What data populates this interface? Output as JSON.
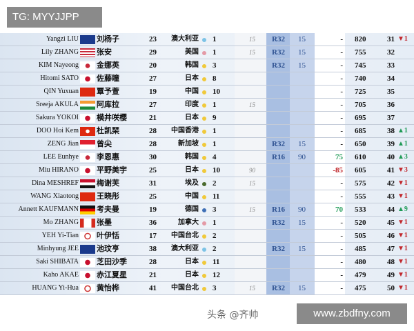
{
  "watermarks": {
    "top_left": "TG: MYYJJPP",
    "bottom_right": "www.zbdfny.com",
    "overlay": "头条 @齐帅"
  },
  "colors": {
    "up": "#1e9a55",
    "down": "#c0262b",
    "region_au": "#7cc3e6",
    "region_na": "#e49aa6",
    "region_asia": "#f0c93a",
    "region_africa": "#4b6b2e",
    "region_eu": "#3f6fb6"
  },
  "rows": [
    {
      "name": "Yangzi LIU",
      "flag": "au",
      "cn": "刘杨子",
      "age": "23",
      "country": "澳大利亚",
      "dot": "#7cc3e6",
      "n": "1",
      "it": "15",
      "round": "R32",
      "rp": "15",
      "diff": "-",
      "pts": "820",
      "rank": "31",
      "chg": "▼1",
      "dir": "down"
    },
    {
      "name": "Lily ZHANG",
      "flag": "us",
      "cn": "张安",
      "age": "29",
      "country": "美国",
      "dot": "#e49aa6",
      "n": "1",
      "it": "15",
      "round": "R32",
      "rp": "15",
      "diff": "-",
      "pts": "755",
      "rank": "32",
      "chg": "",
      "dir": ""
    },
    {
      "name": "KIM Nayeong",
      "flag": "kr",
      "cn": "金娜英",
      "age": "20",
      "country": "韩国",
      "dot": "#f0c93a",
      "n": "3",
      "it": "",
      "round": "R32",
      "rp": "15",
      "diff": "-",
      "pts": "745",
      "rank": "33",
      "chg": "",
      "dir": ""
    },
    {
      "name": "Hitomi SATO",
      "flag": "jp",
      "cn": "佐藤瞳",
      "age": "27",
      "country": "日本",
      "dot": "#f0c93a",
      "n": "8",
      "it": "",
      "round": "",
      "rp": "",
      "diff": "-",
      "pts": "740",
      "rank": "34",
      "chg": "",
      "dir": ""
    },
    {
      "name": "QIN Yuxuan",
      "flag": "cn",
      "cn": "覃予萱",
      "age": "19",
      "country": "中国",
      "dot": "#f0c93a",
      "n": "10",
      "it": "",
      "round": "",
      "rp": "",
      "diff": "-",
      "pts": "725",
      "rank": "35",
      "chg": "",
      "dir": ""
    },
    {
      "name": "Sreeja AKULA",
      "flag": "in",
      "cn": "阿库拉",
      "age": "27",
      "country": "印度",
      "dot": "#f0c93a",
      "n": "1",
      "it": "15",
      "round": "",
      "rp": "",
      "diff": "-",
      "pts": "705",
      "rank": "36",
      "chg": "",
      "dir": ""
    },
    {
      "name": "Sakura YOKOI",
      "flag": "jp",
      "cn": "横井咲樱",
      "age": "21",
      "country": "日本",
      "dot": "#f0c93a",
      "n": "9",
      "it": "",
      "round": "",
      "rp": "",
      "diff": "-",
      "pts": "695",
      "rank": "37",
      "chg": "",
      "dir": ""
    },
    {
      "name": "DOO Hoi Kem",
      "flag": "hk",
      "cn": "杜凯琹",
      "age": "28",
      "country": "中国香港",
      "dot": "#f0c93a",
      "n": "1",
      "it": "",
      "round": "",
      "rp": "",
      "diff": "-",
      "pts": "685",
      "rank": "38",
      "chg": "▲1",
      "dir": "up"
    },
    {
      "name": "ZENG Jian",
      "flag": "sg",
      "cn": "曾尖",
      "age": "28",
      "country": "新加坡",
      "dot": "#f0c93a",
      "n": "1",
      "it": "",
      "round": "R32",
      "rp": "15",
      "diff": "-",
      "pts": "650",
      "rank": "39",
      "chg": "▲1",
      "dir": "up"
    },
    {
      "name": "LEE Eunhye",
      "flag": "kr",
      "cn": "李恩惠",
      "age": "30",
      "country": "韩国",
      "dot": "#f0c93a",
      "n": "4",
      "it": "",
      "round": "R16",
      "rp": "90",
      "diff": "75",
      "pts": "610",
      "rank": "40",
      "chg": "▲3",
      "dir": "up"
    },
    {
      "name": "Miu HIRANO",
      "flag": "jp",
      "cn": "平野美宇",
      "age": "25",
      "country": "日本",
      "dot": "#f0c93a",
      "n": "10",
      "it": "90",
      "round": "",
      "rp": "",
      "diff": "-85",
      "pts": "605",
      "rank": "41",
      "chg": "▼3",
      "dir": "down"
    },
    {
      "name": "Dina MESHREF",
      "flag": "eg",
      "cn": "梅谢芙",
      "age": "31",
      "country": "埃及",
      "dot": "#4b6b2e",
      "n": "2",
      "it": "15",
      "round": "",
      "rp": "",
      "diff": "-",
      "pts": "575",
      "rank": "42",
      "chg": "▼1",
      "dir": "down"
    },
    {
      "name": "WANG Xiaotong",
      "flag": "cn",
      "cn": "王晓彤",
      "age": "25",
      "country": "中国",
      "dot": "#f0c93a",
      "n": "11",
      "it": "",
      "round": "",
      "rp": "",
      "diff": "-",
      "pts": "555",
      "rank": "43",
      "chg": "▼1",
      "dir": "down"
    },
    {
      "name": "Annett KAUFMANN",
      "flag": "de",
      "cn": "考夫曼",
      "age": "19",
      "country": "德国",
      "dot": "#3f6fb6",
      "n": "3",
      "it": "15",
      "round": "R16",
      "rp": "90",
      "diff": "70",
      "pts": "533",
      "rank": "44",
      "chg": "▲9",
      "dir": "up"
    },
    {
      "name": "Mo ZHANG",
      "flag": "ca",
      "cn": "张墨",
      "age": "36",
      "country": "加拿大",
      "dot": "#e49aa6",
      "n": "1",
      "it": "",
      "round": "R32",
      "rp": "15",
      "diff": "-",
      "pts": "520",
      "rank": "45",
      "chg": "▼1",
      "dir": "down"
    },
    {
      "name": "YEH Yi-Tian",
      "flag": "tpe",
      "cn": "叶伊恬",
      "age": "17",
      "country": "中国台北",
      "dot": "#f0c93a",
      "n": "2",
      "it": "",
      "round": "",
      "rp": "",
      "diff": "-",
      "pts": "505",
      "rank": "46",
      "chg": "▼1",
      "dir": "down"
    },
    {
      "name": "Minhyung JEE",
      "flag": "au",
      "cn": "池玟亨",
      "age": "38",
      "country": "澳大利亚",
      "dot": "#7cc3e6",
      "n": "2",
      "it": "",
      "round": "R32",
      "rp": "15",
      "diff": "-",
      "pts": "485",
      "rank": "47",
      "chg": "▼1",
      "dir": "down"
    },
    {
      "name": "Saki SHIBATA",
      "flag": "jp",
      "cn": "芝田沙季",
      "age": "28",
      "country": "日本",
      "dot": "#f0c93a",
      "n": "11",
      "it": "",
      "round": "",
      "rp": "",
      "diff": "-",
      "pts": "480",
      "rank": "48",
      "chg": "▼1",
      "dir": "down"
    },
    {
      "name": "Kaho AKAE",
      "flag": "jp",
      "cn": "赤江夏星",
      "age": "21",
      "country": "日本",
      "dot": "#f0c93a",
      "n": "12",
      "it": "",
      "round": "",
      "rp": "",
      "diff": "-",
      "pts": "479",
      "rank": "49",
      "chg": "▼1",
      "dir": "down"
    },
    {
      "name": "HUANG Yi-Hua",
      "flag": "tpe",
      "cn": "黄怡桦",
      "age": "41",
      "country": "中国台北",
      "dot": "#f0c93a",
      "n": "3",
      "it": "15",
      "round": "R32",
      "rp": "15",
      "diff": "-",
      "pts": "475",
      "rank": "50",
      "chg": "▼1",
      "dir": "down"
    }
  ]
}
